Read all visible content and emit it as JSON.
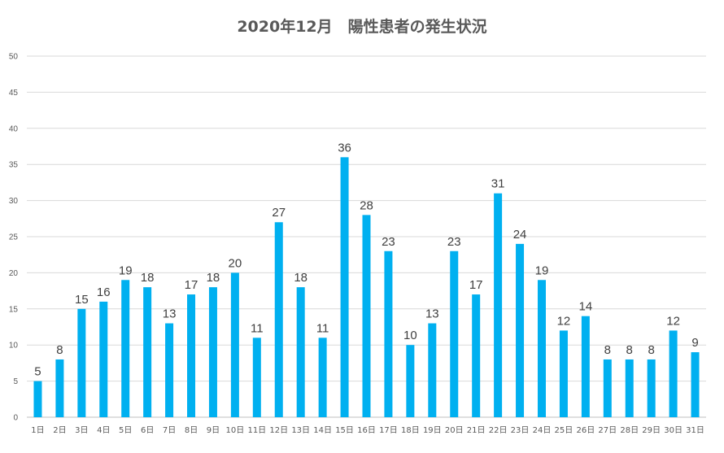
{
  "chart_data": {
    "type": "bar",
    "title": "2020年12月　陽性患者の発生状況",
    "xlabel": "",
    "ylabel": "",
    "ylim": [
      0,
      50
    ],
    "yticks": [
      0,
      5,
      10,
      15,
      20,
      25,
      30,
      35,
      40,
      45,
      50
    ],
    "grid": true,
    "legend": "none",
    "bar_color": "#00B0F0",
    "categories": [
      "1日",
      "2日",
      "3日",
      "4日",
      "5日",
      "6日",
      "7日",
      "8日",
      "9日",
      "10日",
      "11日",
      "12日",
      "13日",
      "14日",
      "15日",
      "16日",
      "17日",
      "18日",
      "19日",
      "20日",
      "21日",
      "22日",
      "23日",
      "24日",
      "25日",
      "26日",
      "27日",
      "28日",
      "29日",
      "30日",
      "31日"
    ],
    "values": [
      5,
      8,
      15,
      16,
      19,
      18,
      13,
      17,
      18,
      20,
      11,
      27,
      18,
      11,
      36,
      28,
      23,
      10,
      13,
      23,
      17,
      31,
      24,
      19,
      12,
      14,
      8,
      8,
      8,
      12,
      9
    ]
  }
}
